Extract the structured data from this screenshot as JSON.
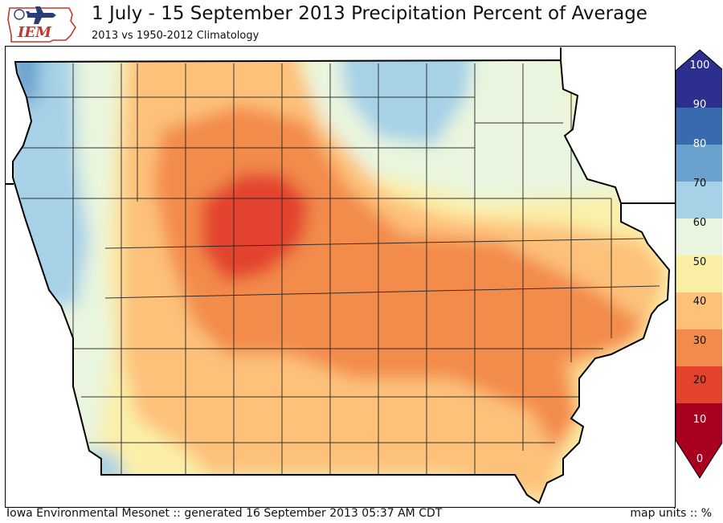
{
  "header": {
    "logo_text": "IEM",
    "title": "1 July - 15 September 2013 Precipitation Percent of Average",
    "subtitle": "2013 vs 1950-2012 Climatology"
  },
  "footer": {
    "credit": "Iowa Environmental Mesonet :: generated 16 September 2013 05:37 AM CDT",
    "units": "map units :: %"
  },
  "legend": {
    "ticks": [
      "100",
      "90",
      "80",
      "70",
      "60",
      "50",
      "40",
      "30",
      "20",
      "10",
      "0"
    ],
    "colors": [
      "#2d2f8f",
      "#3a6aae",
      "#6aa1cf",
      "#a6d1e7",
      "#e9f5de",
      "#fbefa8",
      "#fdc17a",
      "#f38b4c",
      "#e3432d",
      "#a8001f"
    ],
    "bin_labels": [
      "0-10",
      "10-20",
      "20-30",
      "30-40",
      "40-50",
      "50-60",
      "60-70",
      "70-80",
      "80-90",
      "90-100"
    ]
  },
  "map": {
    "region": "Iowa",
    "variable": "precipitation percent of average",
    "driest_area": "north-central Iowa (10-20%)",
    "wettest_area": "northwest corner (70-80%)"
  }
}
